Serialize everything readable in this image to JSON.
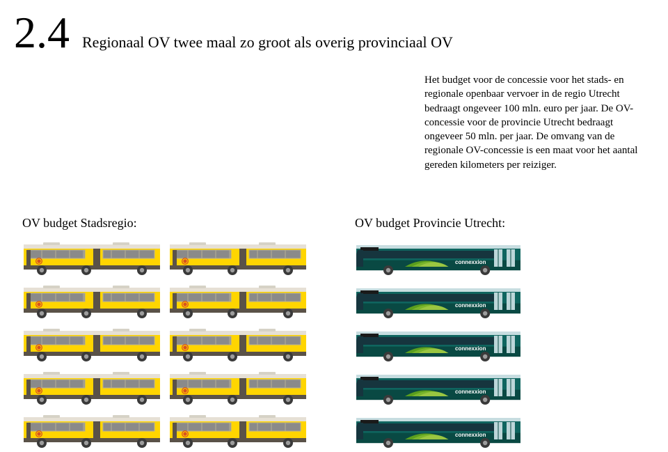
{
  "section_number": "2.4",
  "section_title": "Regionaal OV twee maal zo groot als overig provinciaal OV",
  "body_text": "Het budget voor de concessie voor het stads- en regionale openbaar vervoer in de regio Utrecht bedraagt ongeveer 100 mln. euro per jaar. De OV-concessie voor de provincie Utrecht bedraagt ongeveer 50 mln. per jaar. De omvang van de regionale OV-concessie is een maat voor het aantal gereden kilometers per reiziger.",
  "left_column": {
    "title": "OV budget Stadsregio:",
    "bus_type": "yellow-articulated",
    "bus_count": 10,
    "rows": 5,
    "cols": 2,
    "colors": {
      "body": "#ffd500",
      "skirt": "#5a5248",
      "roof_light": "#e6e0d5",
      "roof_vent": "#d6d2c6",
      "window": "#8a8a8a",
      "window_frame": "#b6b097",
      "joint": "#5a5248",
      "wheel_fill": "#3a3a3a",
      "wheel_rim": "#9c9c9c",
      "door": "#5a5248",
      "logo_circle": "#d9531e",
      "logo_ring": "#ffd500"
    }
  },
  "right_column": {
    "title": "OV budget Provincie Utrecht:",
    "bus_type": "teal-standard",
    "bus_count": 5,
    "rows": 5,
    "cols": 1,
    "colors": {
      "body": "#0f655f",
      "body_dark": "#094943",
      "roof_band": "#c7dde0",
      "window": "#16353e",
      "wheel_fill": "#3a3a3a",
      "wheel_rim": "#9c9c9c",
      "door": "#bcd6d9",
      "swoosh1": "#9ac641",
      "swoosh2": "#7ab52c",
      "swoosh3": "#5a9e1e",
      "brand_text": "connexxion",
      "brand_color": "#ffffff"
    }
  },
  "body_fontsize": 15,
  "heading_fontsize": 22,
  "number_fontsize": 64,
  "col_title_fontsize": 18,
  "background_color": "#ffffff"
}
